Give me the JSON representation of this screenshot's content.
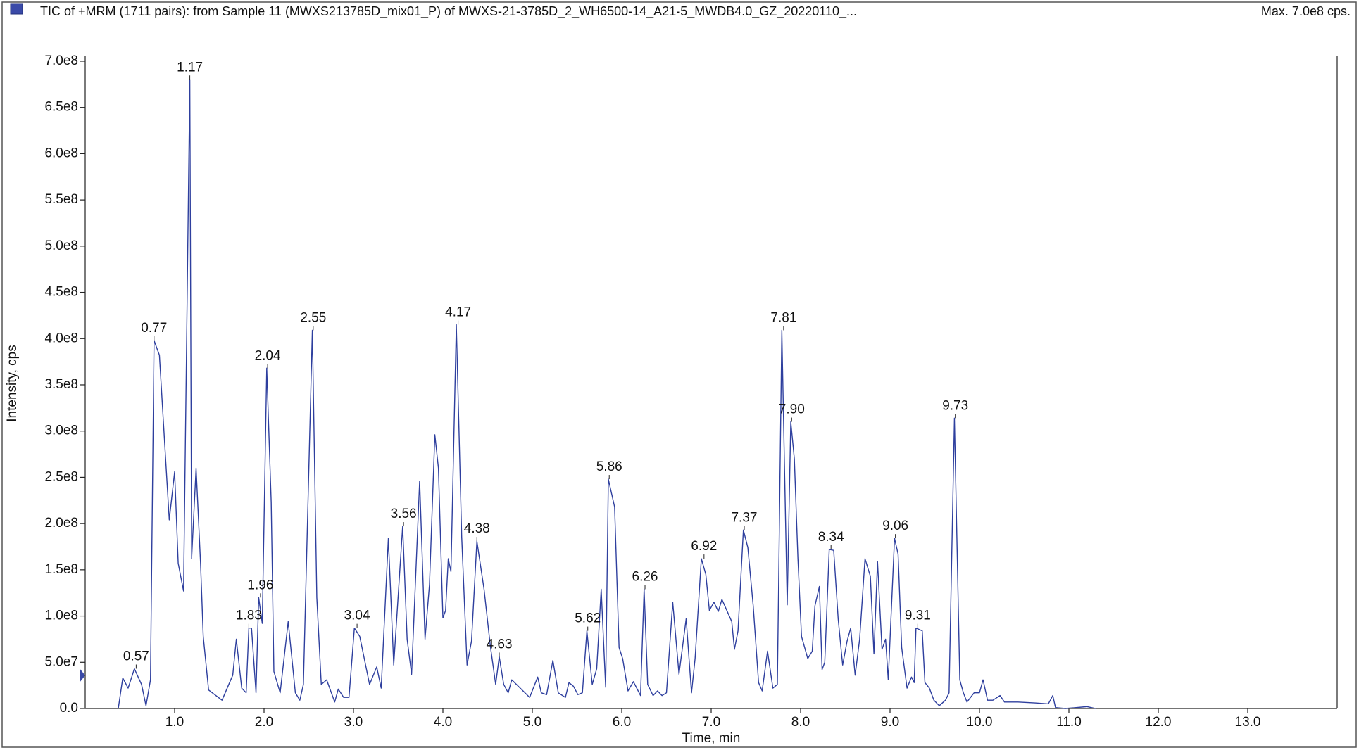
{
  "chart_data": {
    "type": "line",
    "title": "TIC of +MRM (1711 pairs): from Sample 11 (MWXS213785D_mix01_P) of MWXS-21-3785D_2_WH6500-14_A21-5_MWDB4.0_GZ_20220110_...",
    "max_label": "Max. 7.0e8 cps.",
    "x_label": "Time, min",
    "y_label": "Intensity, cps",
    "xlim": [
      0,
      14
    ],
    "ylim": [
      0,
      705300000
    ],
    "xticks": [
      {
        "value": 1,
        "label": "1.0"
      },
      {
        "value": 2,
        "label": "2.0"
      },
      {
        "value": 3,
        "label": "3.0"
      },
      {
        "value": 4,
        "label": "4.0"
      },
      {
        "value": 5,
        "label": "5.0"
      },
      {
        "value": 6,
        "label": "6.0"
      },
      {
        "value": 7,
        "label": "7.0"
      },
      {
        "value": 8,
        "label": "8.0"
      },
      {
        "value": 9,
        "label": "9.0"
      },
      {
        "value": 10,
        "label": "10.0"
      },
      {
        "value": 11,
        "label": "11.0"
      },
      {
        "value": 12,
        "label": "12.0"
      },
      {
        "value": 13,
        "label": "13.0"
      }
    ],
    "yticks": [
      {
        "value": 0,
        "label": "0.0"
      },
      {
        "value": 50000000,
        "label": "5.0e7"
      },
      {
        "value": 100000000,
        "label": "1.0e8"
      },
      {
        "value": 150000000,
        "label": "1.5e8"
      },
      {
        "value": 200000000,
        "label": "2.0e8"
      },
      {
        "value": 250000000,
        "label": "2.5e8"
      },
      {
        "value": 300000000,
        "label": "3.0e8"
      },
      {
        "value": 350000000,
        "label": "3.5e8"
      },
      {
        "value": 400000000,
        "label": "4.0e8"
      },
      {
        "value": 450000000,
        "label": "4.5e8"
      },
      {
        "value": 500000000,
        "label": "5.0e8"
      },
      {
        "value": 550000000,
        "label": "5.5e8"
      },
      {
        "value": 600000000,
        "label": "6.0e8"
      },
      {
        "value": 650000000,
        "label": "6.5e8"
      },
      {
        "value": 700000000,
        "label": "7.0e8"
      }
    ],
    "x": [
      0.37,
      0.42,
      0.48,
      0.55,
      0.63,
      0.68,
      0.73,
      0.77,
      0.83,
      0.87,
      0.94,
      1.0,
      1.04,
      1.1,
      1.17,
      1.19,
      1.24,
      1.29,
      1.32,
      1.38,
      1.53,
      1.65,
      1.69,
      1.75,
      1.8,
      1.83,
      1.86,
      1.91,
      1.94,
      1.98,
      2.03,
      2.08,
      2.11,
      2.18,
      2.27,
      2.35,
      2.4,
      2.44,
      2.54,
      2.59,
      2.64,
      2.7,
      2.79,
      2.83,
      2.89,
      2.95,
      3.01,
      3.07,
      3.18,
      3.26,
      3.31,
      3.39,
      3.45,
      3.55,
      3.6,
      3.65,
      3.74,
      3.8,
      3.85,
      3.91,
      3.95,
      4.0,
      4.03,
      4.06,
      4.09,
      4.15,
      4.21,
      4.27,
      4.32,
      4.38,
      4.46,
      4.53,
      4.59,
      4.63,
      4.68,
      4.73,
      4.77,
      4.97,
      5.06,
      5.1,
      5.16,
      5.23,
      5.29,
      5.37,
      5.41,
      5.46,
      5.51,
      5.56,
      5.61,
      5.67,
      5.72,
      5.77,
      5.82,
      5.85,
      5.92,
      5.97,
      6.01,
      6.07,
      6.13,
      6.21,
      6.25,
      6.29,
      6.35,
      6.4,
      6.45,
      6.5,
      6.57,
      6.64,
      6.72,
      6.78,
      6.82,
      6.89,
      6.94,
      6.98,
      7.03,
      7.08,
      7.12,
      7.23,
      7.26,
      7.3,
      7.36,
      7.41,
      7.47,
      7.53,
      7.57,
      7.63,
      7.69,
      7.74,
      7.79,
      7.82,
      7.85,
      7.89,
      7.93,
      7.97,
      8.01,
      8.08,
      8.13,
      8.16,
      8.21,
      8.24,
      8.27,
      8.32,
      8.37,
      8.42,
      8.47,
      8.52,
      8.56,
      8.61,
      8.66,
      8.72,
      8.78,
      8.82,
      8.86,
      8.91,
      8.95,
      8.98,
      9.05,
      9.09,
      9.13,
      9.19,
      9.24,
      9.27,
      9.29,
      9.36,
      9.39,
      9.44,
      9.49,
      9.55,
      9.62,
      9.66,
      9.72,
      9.78,
      9.82,
      9.86,
      9.94,
      10.0,
      10.04,
      10.09,
      10.15,
      10.23,
      10.28,
      10.43,
      10.62,
      10.77,
      10.82,
      10.85,
      10.96,
      11.2,
      11.3
    ],
    "series": [
      {
        "color": "#2e3f9e",
        "values": [
          0,
          33000000.0,
          22000000.0,
          43000000.0,
          26000000.0,
          3000000.0,
          31000000.0,
          398000000.0,
          382000000.0,
          317000000.0,
          204000000.0,
          256000000.0,
          157000000.0,
          127000000.0,
          680000000.0,
          162000000.0,
          260000000.0,
          157000000.0,
          78000000.0,
          20000000.0,
          9000000.0,
          36000000.0,
          75000000.0,
          22000000.0,
          17000000.0,
          87000000.0,
          87000000.0,
          17000000.0,
          120000000.0,
          92000000.0,
          368000000.0,
          223000000.0,
          40000000.0,
          17000000.0,
          94000000.0,
          17000000.0,
          9000000.0,
          26000000.0,
          409000000.0,
          120000000.0,
          26000000.0,
          31000000.0,
          7000000.0,
          21000000.0,
          12000000.0,
          12000000.0,
          87000000.0,
          78000000.0,
          26000000.0,
          45000000.0,
          22000000.0,
          184000000.0,
          47000000.0,
          197000000.0,
          75000000.0,
          37000000.0,
          246000000.0,
          75000000.0,
          134000000.0,
          296000000.0,
          260000000.0,
          98000000.0,
          106000000.0,
          162000000.0,
          148000000.0,
          415000000.0,
          186000000.0,
          47000000.0,
          73000000.0,
          181000000.0,
          129000000.0,
          68000000.0,
          26000000.0,
          56000000.0,
          26000000.0,
          17000000.0,
          31000000.0,
          12000000.0,
          34000000.0,
          17000000.0,
          15000000.0,
          52000000.0,
          17000000.0,
          12000000.0,
          28000000.0,
          24000000.0,
          15000000.0,
          17000000.0,
          84000000.0,
          26000000.0,
          43000000.0,
          129000000.0,
          23000000.0,
          248000000.0,
          218000000.0,
          66000000.0,
          54000000.0,
          19000000.0,
          29000000.0,
          14000000.0,
          129000000.0,
          26000000.0,
          14000000.0,
          19000000.0,
          14000000.0,
          17000000.0,
          115000000.0,
          37000000.0,
          97000000.0,
          17000000.0,
          54000000.0,
          162000000.0,
          145000000.0,
          106000000.0,
          115000000.0,
          105000000.0,
          118000000.0,
          94000000.0,
          64000000.0,
          84000000.0,
          193000000.0,
          174000000.0,
          111000000.0,
          28000000.0,
          19000000.0,
          62000000.0,
          22000000.0,
          26000000.0,
          409000000.0,
          260000000.0,
          112000000.0,
          310000000.0,
          270000000.0,
          162000000.0,
          78000000.0,
          54000000.0,
          62000000.0,
          111000000.0,
          132000000.0,
          42000000.0,
          50000000.0,
          172000000.0,
          171000000.0,
          97000000.0,
          47000000.0,
          73000000.0,
          87000000.0,
          36000000.0,
          75000000.0,
          162000000.0,
          143000000.0,
          59000000.0,
          159000000.0,
          64000000.0,
          75000000.0,
          31000000.0,
          184000000.0,
          167000000.0,
          66000000.0,
          22000000.0,
          34000000.0,
          28000000.0,
          87000000.0,
          84000000.0,
          28000000.0,
          22000000.0,
          9000000.0,
          3000000.0,
          9000000.0,
          17000000.0,
          314000000.0,
          31000000.0,
          17000000.0,
          7000000.0,
          17000000.0,
          17000000.0,
          31000000.0,
          9000000.0,
          9000000.0,
          14000000.0,
          7000000.0,
          7000000.0,
          6000000.0,
          5000000.0,
          14000000.0,
          1000000.0,
          0,
          2000000.0,
          0
        ]
      }
    ],
    "peaks": {
      "x": [
        0.57,
        0.77,
        1.17,
        1.83,
        1.96,
        2.04,
        2.55,
        3.04,
        3.56,
        4.17,
        4.38,
        4.63,
        5.62,
        5.86,
        6.26,
        6.92,
        7.37,
        7.81,
        7.9,
        8.34,
        9.06,
        9.31,
        9.73
      ],
      "y": [
        43000000.0,
        398000000.0,
        680000000.0,
        87000000.0,
        120000000.0,
        368000000.0,
        409000000.0,
        87000000.0,
        197000000.0,
        415000000.0,
        181000000.0,
        56000000.0,
        84000000.0,
        248000000.0,
        129000000.0,
        162000000.0,
        193000000.0,
        409000000.0,
        310000000.0,
        172000000.0,
        184000000.0,
        87000000.0,
        314000000.0
      ],
      "value_labels": [
        "0.57",
        "0.77",
        "1.17",
        "1.83",
        "1.96",
        "2.04",
        "2.55",
        "3.04",
        "3.56",
        "4.17",
        "4.38",
        "4.63",
        "5.62",
        "5.86",
        "6.26",
        "6.92",
        "7.37",
        "7.81",
        "7.90",
        "8.34",
        "9.06",
        "9.31",
        "9.73"
      ]
    }
  }
}
